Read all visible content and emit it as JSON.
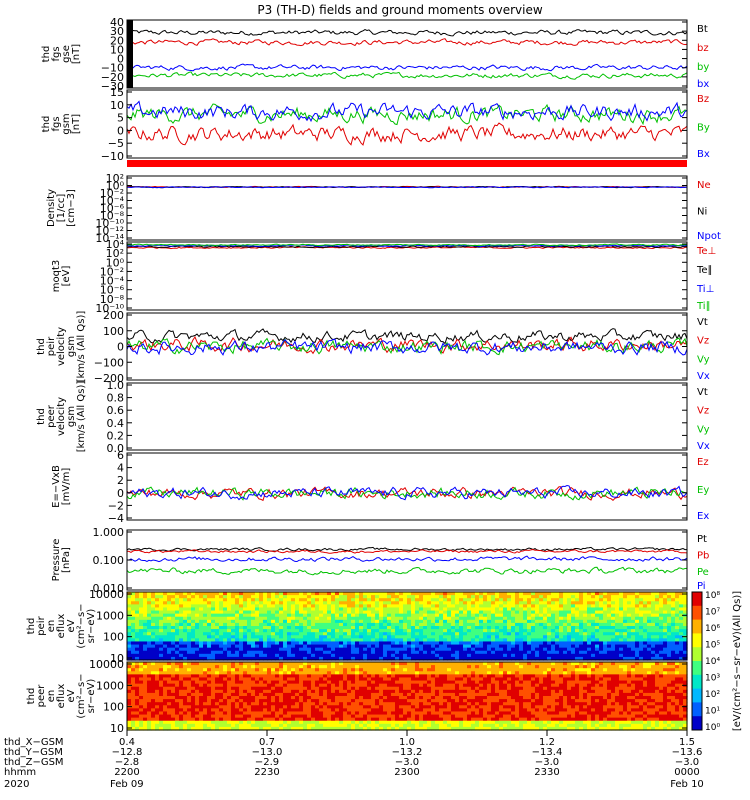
{
  "title": "P3 (TH-D) fields and ground moments overview",
  "colors": {
    "black": "#000000",
    "red": "#e00000",
    "green": "#00c000",
    "blue": "#0000ff"
  },
  "chart_data": [
    {
      "type": "line",
      "ylabel": [
        "thd",
        "fgs",
        "gse",
        "[nT]"
      ],
      "yticks": [
        "40",
        "30",
        "20",
        "10",
        "0",
        "−10",
        "−20",
        "−30"
      ],
      "ylim": [
        -30,
        40
      ],
      "series": [
        {
          "name": "Bt",
          "color": "#000000",
          "level": 27,
          "noise": 2
        },
        {
          "name": "bz",
          "color": "#e00000",
          "level": 17,
          "noise": 2
        },
        {
          "name": "by",
          "color": "#00c000",
          "level": -17,
          "noise": 2
        },
        {
          "name": "bx",
          "color": "#0000ff",
          "level": -9,
          "noise": 2
        }
      ]
    },
    {
      "type": "line",
      "ylabel": [
        "thd",
        "fgs",
        "gsm",
        "[nT]"
      ],
      "yticks": [
        "15",
        "10",
        "5",
        "0",
        "−5",
        "−10"
      ],
      "ylim": [
        -13,
        15
      ],
      "series": [
        {
          "name": "Bz",
          "color": "#e00000",
          "level": -3,
          "noise": 2.5
        },
        {
          "name": "By",
          "color": "#00c000",
          "level": 5,
          "noise": 2.5
        },
        {
          "name": "Bx",
          "color": "#0000ff",
          "level": 6,
          "noise": 2.5
        }
      ]
    },
    {
      "type": "line",
      "ylabel": [
        "Density",
        "[1/cc]",
        "[cm−3]"
      ],
      "yticks": [
        "10²",
        "10⁰",
        "10⁻²",
        "10⁻⁴",
        "10⁻⁶",
        "10⁻⁸",
        "10⁻¹⁰",
        "10⁻¹²",
        "10⁻¹⁴"
      ],
      "ylim": [
        -14,
        3
      ],
      "scale": "log",
      "series": [
        {
          "name": "Ne",
          "color": "#e00000",
          "level": 0.1,
          "noise": 0.1
        },
        {
          "name": "Ni",
          "color": "#000000",
          "level": 0.05,
          "noise": 0.1
        },
        {
          "name": "Npot",
          "color": "#0000ff",
          "level": 0,
          "noise": 0.1
        }
      ]
    },
    {
      "type": "line",
      "ylabel": [
        "moqt3",
        "[eV]"
      ],
      "yticks": [
        "10⁴",
        "10²",
        "10⁰",
        "10⁻²",
        "10⁻⁴",
        "10⁻⁶",
        "10⁻⁸",
        "10⁻¹⁰"
      ],
      "ylim": [
        -10,
        4.5
      ],
      "scale": "log",
      "series": [
        {
          "name": "Te⊥",
          "color": "#e00000",
          "level": 3.3,
          "noise": 0.12
        },
        {
          "name": "Te∥",
          "color": "#000000",
          "level": 3.5,
          "noise": 0.12
        },
        {
          "name": "Ti⊥",
          "color": "#0000ff",
          "level": 3.7,
          "noise": 0.1
        },
        {
          "name": "Ti∥",
          "color": "#00c000",
          "level": 3.9,
          "noise": 0.1
        }
      ]
    },
    {
      "type": "line",
      "ylabel": [
        "thd",
        "peir",
        "velocity",
        "gsm",
        "[km/s (All Qs)]"
      ],
      "yticks": [
        "200",
        "100",
        "0",
        "−100",
        "−200"
      ],
      "ylim": [
        -200,
        200
      ],
      "series": [
        {
          "name": "Vt",
          "color": "#000000",
          "level": 60,
          "noise": 25
        },
        {
          "name": "Vz",
          "color": "#e00000",
          "level": 10,
          "noise": 30
        },
        {
          "name": "Vy",
          "color": "#00c000",
          "level": 0,
          "noise": 30
        },
        {
          "name": "Vx",
          "color": "#0000ff",
          "level": -5,
          "noise": 30
        }
      ]
    },
    {
      "type": "line",
      "ylabel": [
        "thd",
        "peer",
        "velocity",
        "gsm",
        "[km/s (All Qs)]"
      ],
      "yticks": [
        "1.0",
        "0.8",
        "0.6",
        "0.4",
        "0.2",
        "0.0"
      ],
      "ylim": [
        0,
        1
      ],
      "series": [
        {
          "name": "Vt",
          "color": "#000000"
        },
        {
          "name": "Vz",
          "color": "#e00000"
        },
        {
          "name": "Vy",
          "color": "#00c000"
        },
        {
          "name": "Vx",
          "color": "#0000ff"
        }
      ]
    },
    {
      "type": "line",
      "ylabel": [
        "E=−VxB",
        "[mV/m]"
      ],
      "yticks": [
        "6",
        "4",
        "2",
        "0",
        "−2",
        "−4"
      ],
      "ylim": [
        -4,
        6
      ],
      "series": [
        {
          "name": "Ez",
          "color": "#e00000",
          "level": 0,
          "noise": 0.6
        },
        {
          "name": "Ey",
          "color": "#00c000",
          "level": 0,
          "noise": 0.6
        },
        {
          "name": "Ex",
          "color": "#0000ff",
          "level": 0,
          "noise": 0.6
        }
      ]
    },
    {
      "type": "line",
      "ylabel": [
        "Pressure",
        "[nPa]"
      ],
      "yticks": [
        "1.000",
        "0.100",
        "0.010"
      ],
      "ylim": [
        -2.4,
        0.4
      ],
      "scale": "log",
      "series": [
        {
          "name": "Pt",
          "color": "#000000",
          "level": -0.5,
          "noise": 0.05
        },
        {
          "name": "Pb",
          "color": "#e00000",
          "level": -0.6,
          "noise": 0.05
        },
        {
          "name": "Pe",
          "color": "#00c000",
          "level": -1.5,
          "noise": 0.1
        },
        {
          "name": "Pi",
          "color": "#0000ff",
          "level": -0.95,
          "noise": 0.08
        }
      ]
    },
    {
      "type": "heatmap",
      "ylabel": [
        "thd",
        "peir",
        "en",
        "eflux",
        "eV",
        "(cm²−s−",
        "sr−eV)"
      ],
      "yticks": [
        "10000",
        "1000",
        "100",
        "10"
      ],
      "scale": "log"
    },
    {
      "type": "heatmap",
      "ylabel": [
        "thd",
        "peer",
        "en",
        "eflux",
        "eV",
        "(cm²−s−",
        "sr−eV)"
      ],
      "yticks": [
        "10000",
        "1000",
        "100",
        "10"
      ],
      "scale": "log"
    }
  ],
  "colorbar": {
    "label": "[eV/(cm²−s−sr−eV)(All Qs)]",
    "ticks": [
      "10⁸",
      "10⁷",
      "10⁶",
      "10⁵",
      "10⁴",
      "10³",
      "10²",
      "10¹",
      "10⁰"
    ]
  },
  "xaxis": {
    "row_labels": [
      "thd_X−GSM",
      "thd_Y−GSM",
      "thd_Z−GSM",
      "hhmm",
      "2020"
    ],
    "columns": [
      [
        "0.4",
        "−12.8",
        "−2.8",
        "2200",
        "Feb 09"
      ],
      [
        "0.7",
        "−13.0",
        "−2.9",
        "2230",
        ""
      ],
      [
        "1.0",
        "−13.2",
        "−3.0",
        "2300",
        ""
      ],
      [
        "1.2",
        "−13.4",
        "−3.0",
        "2330",
        ""
      ],
      [
        "1.5",
        "−13.6",
        "−3.0",
        "0000",
        "Feb 10"
      ]
    ]
  }
}
